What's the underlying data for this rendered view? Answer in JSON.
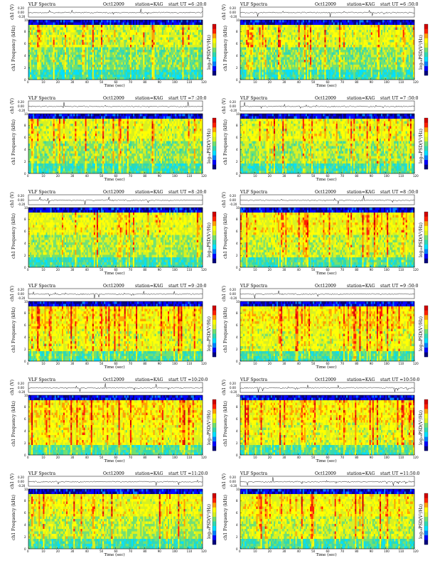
{
  "colors": {
    "colormap": [
      "#00007f",
      "#0000ff",
      "#0080ff",
      "#00e0ff",
      "#30d8b0",
      "#70e070",
      "#d8f020",
      "#ffff00",
      "#ffa000",
      "#ff2000",
      "#d00000"
    ]
  },
  "chart_data": [
    {
      "type": "heatmap",
      "title": "VLF Spectra",
      "date": "Oct12009",
      "station": "station=KAG",
      "start": "start  UT =6 :20:0",
      "ch_label": "ch1 (V)",
      "ylabel": "ch1 Frequency (kHz)",
      "xlabel": "Time (sec)",
      "cbar_label": "log₁₀PSD(V²/Hz)",
      "ch_ticks": [
        "0.20",
        "0.00",
        "-0.20"
      ],
      "yticks": [
        "0",
        "2",
        "4",
        "6",
        "8",
        "10"
      ],
      "xticks": [
        "0",
        "10",
        "20",
        "30",
        "40",
        "50",
        "60",
        "70",
        "80",
        "90",
        "100",
        "110",
        "120"
      ],
      "x_range": [
        0,
        120
      ],
      "y_range_khz": [
        0,
        10
      ],
      "intensity": 0.25
    },
    {
      "type": "heatmap",
      "title": "VLF Spectra",
      "date": "Oct12009",
      "station": "station=KAG",
      "start": "start  UT =6 :50:0",
      "ch_label": "ch1 (V)",
      "ylabel": "ch1 Frequency (kHz)",
      "xlabel": "Time (sec)",
      "cbar_label": "log₁₀PSD(V²/Hz)",
      "ch_ticks": [
        "0.20",
        "0.00",
        "-0.20"
      ],
      "yticks": [
        "0",
        "2",
        "4",
        "6",
        "8",
        "10"
      ],
      "xticks": [
        "0",
        "10",
        "20",
        "30",
        "40",
        "50",
        "60",
        "70",
        "80",
        "90",
        "100",
        "110",
        "120"
      ],
      "x_range": [
        0,
        120
      ],
      "y_range_khz": [
        0,
        10
      ],
      "intensity": 0.3
    },
    {
      "type": "heatmap",
      "title": "VLF Spectra",
      "date": "Oct12009",
      "station": "station=KAG",
      "start": "start  UT =7 :20:0",
      "ch_label": "ch1 (V)",
      "ylabel": "ch1 Frequency (kHz)",
      "xlabel": "Time (sec)",
      "cbar_label": "log₁₀PSD(V²/Hz)",
      "ch_ticks": [
        "0.20",
        "0.00",
        "-0.20"
      ],
      "yticks": [
        "0",
        "2",
        "4",
        "6",
        "8",
        "10"
      ],
      "xticks": [
        "0",
        "10",
        "20",
        "30",
        "40",
        "50",
        "60",
        "70",
        "80",
        "90",
        "100",
        "110",
        "120"
      ],
      "x_range": [
        0,
        120
      ],
      "y_range_khz": [
        0,
        10
      ],
      "intensity": 0.35
    },
    {
      "type": "heatmap",
      "title": "VLF Spectra",
      "date": "Oct12009",
      "station": "station=KAG",
      "start": "start  UT =7 :50:0",
      "ch_label": "ch1 (V)",
      "ylabel": "ch1 Frequency (kHz)",
      "xlabel": "Time (sec)",
      "cbar_label": "log₁₀PSD(V²/Hz)",
      "ch_ticks": [
        "0.20",
        "0.00",
        "-0.20"
      ],
      "yticks": [
        "0",
        "2",
        "4",
        "6",
        "8",
        "10"
      ],
      "xticks": [
        "0",
        "10",
        "20",
        "30",
        "40",
        "50",
        "60",
        "70",
        "80",
        "90",
        "100",
        "110",
        "120"
      ],
      "x_range": [
        0,
        120
      ],
      "y_range_khz": [
        0,
        10
      ],
      "intensity": 0.38
    },
    {
      "type": "heatmap",
      "title": "VLF Spectra",
      "date": "Oct12009",
      "station": "station=KAG",
      "start": "start  UT =8 :20:0",
      "ch_label": "ch1 (V)",
      "ylabel": "ch1 Frequency (kHz)",
      "xlabel": "Time (sec)",
      "cbar_label": "log₁₀PSD(V²/Hz)",
      "ch_ticks": [
        "0.20",
        "0.00",
        "-0.20"
      ],
      "yticks": [
        "0",
        "2",
        "4",
        "6",
        "8",
        "10"
      ],
      "xticks": [
        "0",
        "10",
        "20",
        "30",
        "40",
        "50",
        "60",
        "70",
        "80",
        "90",
        "100",
        "110",
        "120"
      ],
      "x_range": [
        0,
        120
      ],
      "y_range_khz": [
        0,
        10
      ],
      "intensity": 0.42
    },
    {
      "type": "heatmap",
      "title": "VLF Spectra",
      "date": "Oct12009",
      "station": "station=KAG",
      "start": "start  UT =8 :50:0",
      "ch_label": "ch1 (V)",
      "ylabel": "ch1 Frequency (kHz)",
      "xlabel": "Time (sec)",
      "cbar_label": "log₁₀PSD(V²/Hz)",
      "ch_ticks": [
        "0.20",
        "0.00",
        "-0.20"
      ],
      "yticks": [
        "0",
        "2",
        "4",
        "6",
        "8",
        "10"
      ],
      "xticks": [
        "0",
        "10",
        "20",
        "30",
        "40",
        "50",
        "60",
        "70",
        "80",
        "90",
        "100",
        "110",
        "120"
      ],
      "x_range": [
        0,
        120
      ],
      "y_range_khz": [
        0,
        10
      ],
      "intensity": 0.5
    },
    {
      "type": "heatmap",
      "title": "VLF Spectra",
      "date": "Oct12009",
      "station": "station=KAG",
      "start": "start  UT =9 :20:0",
      "ch_label": "ch1 (V)",
      "ylabel": "ch1 Frequency (kHz)",
      "xlabel": "Time (sec)",
      "cbar_label": "log₁₀PSD(V²/Hz)",
      "ch_ticks": [
        "0.20",
        "0.00",
        "-0.20"
      ],
      "yticks": [
        "0",
        "2",
        "4",
        "6",
        "8",
        "10"
      ],
      "xticks": [
        "0",
        "10",
        "20",
        "30",
        "40",
        "50",
        "60",
        "70",
        "80",
        "90",
        "100",
        "110",
        "120"
      ],
      "x_range": [
        0,
        120
      ],
      "y_range_khz": [
        0,
        10
      ],
      "intensity": 0.6
    },
    {
      "type": "heatmap",
      "title": "VLF Spectra",
      "date": "Oct12009",
      "station": "station=KAG",
      "start": "start  UT =9 :50:0",
      "ch_label": "ch1 (V)",
      "ylabel": "ch1 Frequency (kHz)",
      "xlabel": "Time (sec)",
      "cbar_label": "log₁₀PSD(V²/Hz)",
      "ch_ticks": [
        "0.20",
        "0.00",
        "-0.20"
      ],
      "yticks": [
        "0",
        "2",
        "4",
        "6",
        "8",
        "10"
      ],
      "xticks": [
        "0",
        "10",
        "20",
        "30",
        "40",
        "50",
        "60",
        "70",
        "80",
        "90",
        "100",
        "110",
        "120"
      ],
      "x_range": [
        0,
        120
      ],
      "y_range_khz": [
        0,
        10
      ],
      "intensity": 0.6
    },
    {
      "type": "heatmap",
      "title": "VLF Spectra",
      "date": "Oct12009",
      "station": "station=KAG",
      "start": "start  UT =10:20:0",
      "ch_label": "ch1 (V)",
      "ylabel": "ch1 Frequency (kHz)",
      "xlabel": "Time (sec)",
      "cbar_label": "log₁₀PSD(V²/Hz)",
      "ch_ticks": [
        "0.20",
        "0.00",
        "-0.20"
      ],
      "yticks": [
        "0",
        "2",
        "4",
        "6",
        "8",
        "10"
      ],
      "xticks": [
        "0",
        "10",
        "20",
        "30",
        "40",
        "50",
        "60",
        "70",
        "80",
        "90",
        "100",
        "110",
        "120"
      ],
      "x_range": [
        0,
        120
      ],
      "y_range_khz": [
        0,
        10
      ],
      "intensity": 0.65
    },
    {
      "type": "heatmap",
      "title": "VLF Spectra",
      "date": "Oct12009",
      "station": "station=KAG",
      "start": "start  UT =10:50:0",
      "ch_label": "ch1 (V)",
      "ylabel": "ch1 Frequency (kHz)",
      "xlabel": "Time (sec)",
      "cbar_label": "log₁₀PSD(V²/Hz)",
      "ch_ticks": [
        "0.20",
        "0.00",
        "-0.20"
      ],
      "yticks": [
        "0",
        "2",
        "4",
        "6",
        "8",
        "10"
      ],
      "xticks": [
        "0",
        "10",
        "20",
        "30",
        "40",
        "50",
        "60",
        "70",
        "80",
        "90",
        "100",
        "110",
        "120"
      ],
      "x_range": [
        0,
        120
      ],
      "y_range_khz": [
        0,
        10
      ],
      "intensity": 0.6
    },
    {
      "type": "heatmap",
      "title": "VLF Spectra",
      "date": "Oct12009",
      "station": "station=KAG",
      "start": "start  UT =11:20:0",
      "ch_label": "ch1 (V)",
      "ylabel": "ch1 Frequency (kHz)",
      "xlabel": "Time (sec)",
      "cbar_label": "log₁₀PSD(V²/Hz)",
      "ch_ticks": [
        "0.20",
        "0.00",
        "-0.20"
      ],
      "yticks": [
        "0",
        "2",
        "4",
        "6",
        "8",
        "10"
      ],
      "xticks": [
        "0",
        "10",
        "20",
        "30",
        "40",
        "50",
        "60",
        "70",
        "80",
        "90",
        "100",
        "110",
        "120"
      ],
      "x_range": [
        0,
        120
      ],
      "y_range_khz": [
        0,
        10
      ],
      "intensity": 0.45
    },
    {
      "type": "heatmap",
      "title": "VLF Spectra",
      "date": "Oct12009",
      "station": "station=KAG",
      "start": "start  UT =11:50:0",
      "ch_label": "ch1 (V)",
      "ylabel": "ch1 Frequency (kHz)",
      "xlabel": "Time (sec)",
      "cbar_label": "log₁₀PSD(V²/Hz)",
      "ch_ticks": [
        "0.20",
        "0.00",
        "-0.20"
      ],
      "yticks": [
        "0",
        "2",
        "4",
        "6",
        "8",
        "10"
      ],
      "xticks": [
        "0",
        "10",
        "20",
        "30",
        "40",
        "50",
        "60",
        "70",
        "80",
        "90",
        "100",
        "110",
        "120"
      ],
      "x_range": [
        0,
        120
      ],
      "y_range_khz": [
        0,
        10
      ],
      "intensity": 0.5
    }
  ]
}
